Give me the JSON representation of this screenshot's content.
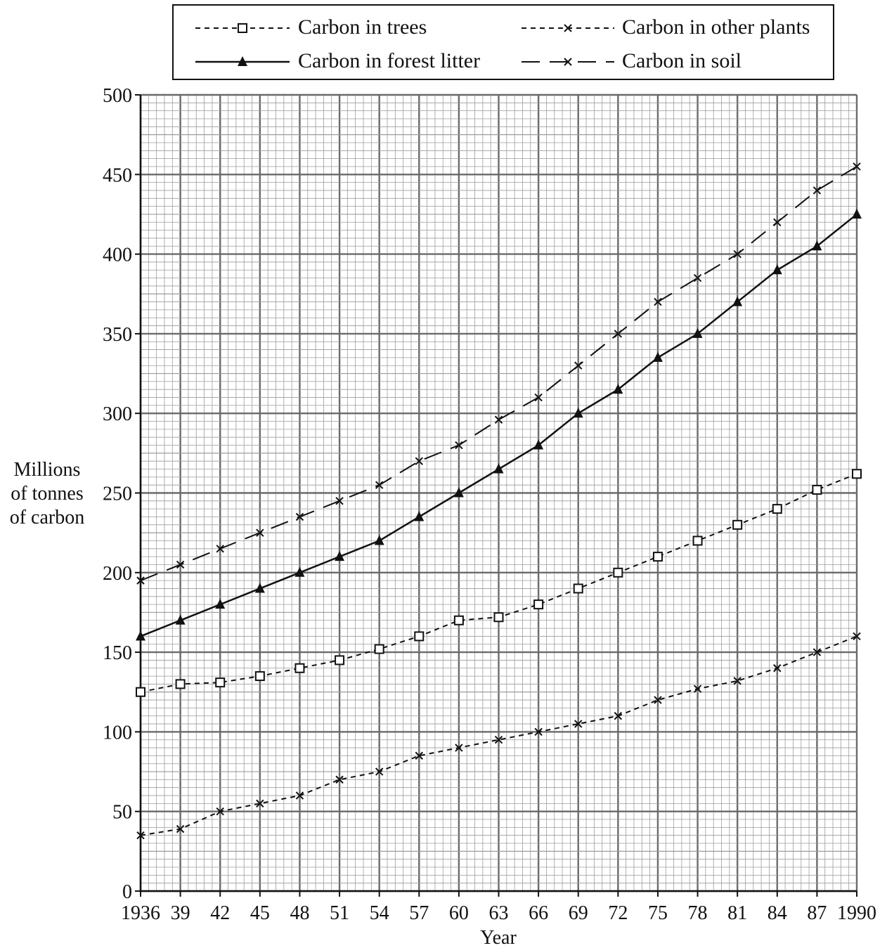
{
  "chart_data": {
    "type": "line",
    "title": "",
    "xlabel": "Year",
    "ylabel": "Millions of tonnes of carbon",
    "ylabel_lines": [
      "Millions",
      "of tonnes",
      "of carbon"
    ],
    "x": [
      1936,
      1939,
      1942,
      1945,
      1948,
      1951,
      1954,
      1957,
      1960,
      1963,
      1966,
      1969,
      1972,
      1975,
      1978,
      1981,
      1984,
      1987,
      1990
    ],
    "x_tick_labels": [
      "1936",
      "39",
      "42",
      "45",
      "48",
      "51",
      "54",
      "57",
      "60",
      "63",
      "66",
      "69",
      "72",
      "75",
      "78",
      "81",
      "84",
      "87",
      "1990"
    ],
    "xlim": [
      1936,
      1990
    ],
    "ylim": [
      0,
      500
    ],
    "y_ticks": [
      0,
      50,
      100,
      150,
      200,
      250,
      300,
      350,
      400,
      450,
      500
    ],
    "y_tick_labels": [
      "0",
      "50",
      "100",
      "150",
      "200",
      "250",
      "300",
      "350",
      "400",
      "450",
      "500"
    ],
    "grid": true,
    "legend_position": "top",
    "series": [
      {
        "name": "Carbon in trees",
        "marker": "square",
        "line_style": "dotted",
        "values": [
          125,
          130,
          131,
          135,
          140,
          145,
          152,
          160,
          170,
          172,
          180,
          190,
          200,
          210,
          220,
          230,
          240,
          252,
          262
        ]
      },
      {
        "name": "Carbon in other plants",
        "marker": "x",
        "line_style": "dotted",
        "values": [
          35,
          39,
          50,
          55,
          60,
          70,
          75,
          85,
          90,
          95,
          100,
          105,
          110,
          120,
          127,
          132,
          140,
          150,
          160
        ]
      },
      {
        "name": "Carbon in forest litter",
        "marker": "triangle",
        "line_style": "solid",
        "values": [
          160,
          170,
          180,
          190,
          200,
          210,
          220,
          235,
          250,
          265,
          280,
          300,
          315,
          335,
          350,
          370,
          390,
          405,
          425
        ]
      },
      {
        "name": "Carbon in soil",
        "marker": "x",
        "line_style": "dashed",
        "values": [
          195,
          205,
          215,
          225,
          235,
          245,
          255,
          270,
          280,
          296,
          310,
          330,
          350,
          370,
          385,
          400,
          420,
          440,
          455
        ]
      }
    ],
    "colors": {
      "line": "#111111",
      "grid_minor": "#9c9c9c",
      "grid_major": "#6a6a6a"
    }
  }
}
